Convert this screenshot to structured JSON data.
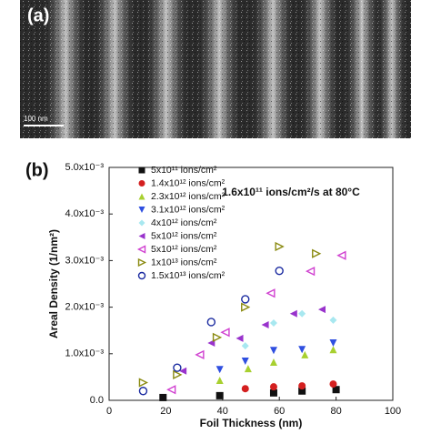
{
  "image_panel": {
    "label": "(a)",
    "scale_bar": "100 nm"
  },
  "chart_data": {
    "type": "scatter",
    "panel_label": "(b)",
    "annotation": "1.6x10¹¹ ions/cm²/s at 80°C",
    "xlabel": "Foil Thickness (nm)",
    "ylabel": "Areal Density (1/nm²)",
    "xlim": [
      0,
      100
    ],
    "xticks": [
      0,
      20,
      40,
      60,
      80,
      100
    ],
    "ylim": [
      0,
      0.005
    ],
    "yticks": [
      {
        "value": 0,
        "label": "0.0"
      },
      {
        "value": 0.001,
        "label": "1.0x10⁻³"
      },
      {
        "value": 0.002,
        "label": "2.0x10⁻³"
      },
      {
        "value": 0.003,
        "label": "3.0x10⁻³"
      },
      {
        "value": 0.004,
        "label": "4.0x10⁻³"
      },
      {
        "value": 0.005,
        "label": "5.0x10⁻³"
      }
    ],
    "legend": "upper left",
    "series": [
      {
        "name": "5x10¹¹ ions/cm²",
        "color": "#111111",
        "marker": "square",
        "x": [
          19,
          39,
          58,
          68,
          80
        ],
        "values": [
          6e-05,
          0.0001,
          0.00016,
          0.0002,
          0.00023
        ]
      },
      {
        "name": "1.4x10¹² ions/cm²",
        "color": "#d42020",
        "marker": "circle",
        "x": [
          48,
          58,
          68,
          79
        ],
        "values": [
          0.00025,
          0.00029,
          0.00031,
          0.00035
        ]
      },
      {
        "name": "2.3x10¹² ions/cm²",
        "color": "#a8d030",
        "marker": "triangle-up",
        "x": [
          39,
          49,
          58,
          69,
          79
        ],
        "values": [
          0.00043,
          0.00068,
          0.00082,
          0.00098,
          0.00109
        ]
      },
      {
        "name": "3.1x10¹² ions/cm²",
        "color": "#2f4fe0",
        "marker": "triangle-down",
        "x": [
          39,
          48,
          58,
          68,
          79
        ],
        "values": [
          0.00066,
          0.00084,
          0.00107,
          0.00109,
          0.00123
        ]
      },
      {
        "name": "4x10¹² ions/cm²",
        "color": "#a8e8f0",
        "marker": "diamond",
        "x": [
          48,
          58,
          68,
          79
        ],
        "values": [
          0.00117,
          0.00166,
          0.00186,
          0.00172
        ]
      },
      {
        "name": "5x10¹² ions/cm²",
        "color": "#9933cc",
        "marker": "triangle-left",
        "x": [
          26,
          36,
          46,
          55,
          65,
          75
        ],
        "values": [
          0.00063,
          0.00123,
          0.00133,
          0.00162,
          0.00186,
          0.00195
        ]
      },
      {
        "name": "5x10¹² ions/cm²",
        "color": "#d040d0",
        "marker": "triangle-left-open",
        "x": [
          22,
          32,
          41,
          57,
          71,
          82
        ],
        "values": [
          0.00023,
          0.00098,
          0.00146,
          0.0023,
          0.00277,
          0.00311
        ]
      },
      {
        "name": "1x10¹³ ions/cm²",
        "color": "#8a8a10",
        "marker": "triangle-right-open",
        "x": [
          12,
          24,
          38,
          48,
          60,
          73
        ],
        "values": [
          0.00038,
          0.00055,
          0.00135,
          0.002,
          0.0033,
          0.00315
        ]
      },
      {
        "name": "1.5x10¹³ ions/cm²",
        "color": "#1a2aa0",
        "marker": "circle-open",
        "x": [
          12,
          24,
          36,
          48,
          60
        ],
        "values": [
          0.0002,
          0.0007,
          0.00168,
          0.00217,
          0.00278
        ]
      }
    ]
  }
}
